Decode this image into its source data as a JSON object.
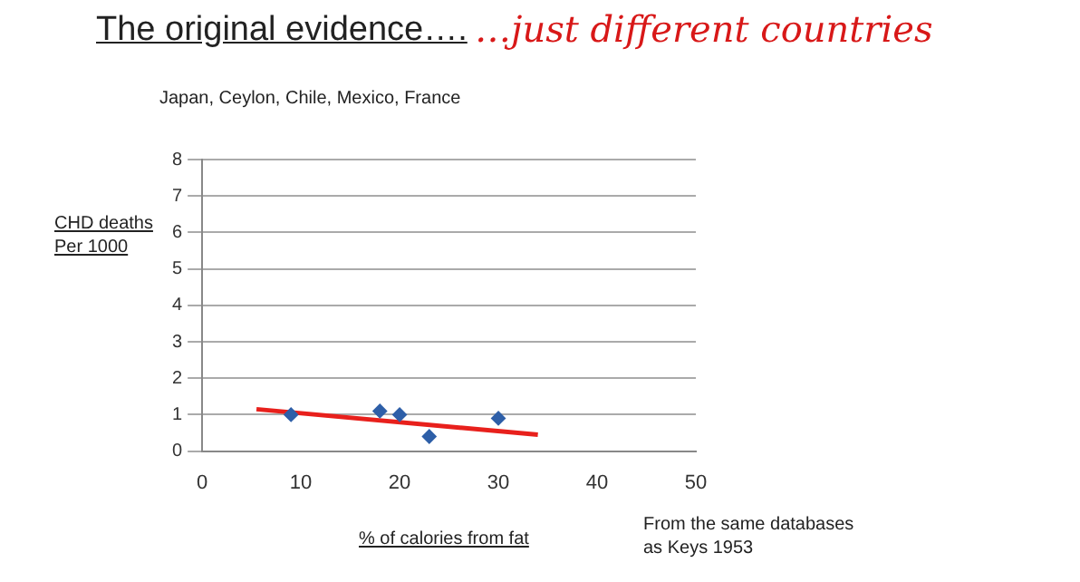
{
  "chart_data": {
    "type": "scatter",
    "title": "The original evidence….",
    "subtitle": "…just different countries",
    "xlabel": "% of calories from fat",
    "ylabel": "CHD deaths\nPer 1000",
    "annotations": [
      "Japan, Ceylon, Chile, Mexico, France",
      "From the same databases\nas Keys 1953"
    ],
    "series": [
      {
        "type": "scatter",
        "color": "#2e5fa8",
        "marker": "diamond",
        "x": [
          9,
          18,
          20,
          23,
          30
        ],
        "values": [
          1,
          1.1,
          1,
          0.4,
          0.9
        ]
      },
      {
        "type": "line",
        "color": "#e8201c",
        "marker": "none",
        "x": [
          5.5,
          34
        ],
        "values": [
          1.15,
          0.45
        ]
      }
    ],
    "xlim": [
      0,
      50
    ],
    "xticks": [
      0,
      10,
      20,
      30,
      40,
      50
    ],
    "ylim": [
      0,
      8
    ],
    "yticks": [
      0,
      1,
      2,
      3,
      4,
      5,
      6,
      7,
      8
    ],
    "grid": "y",
    "legend": false
  }
}
